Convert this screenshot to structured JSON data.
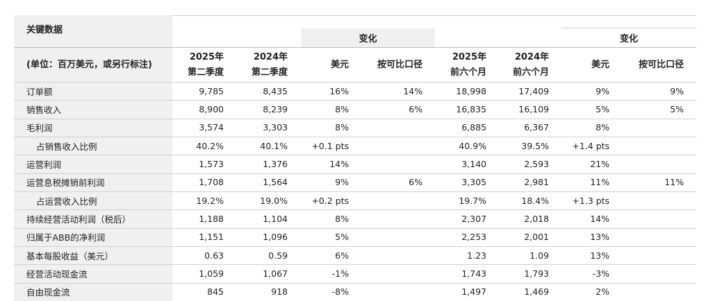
{
  "header": {
    "title": "关键数据",
    "groups": [
      "变化",
      "变化"
    ]
  },
  "table": {
    "columns": [
      [
        "(单位：百万美元，或另行标注)"
      ],
      [
        "2025年",
        "第二季度"
      ],
      [
        "2024年",
        "第二季度"
      ],
      [
        "美元"
      ],
      [
        "按可比口径"
      ],
      [
        "2025年",
        "前六个月"
      ],
      [
        "2024年",
        "前六个月"
      ],
      [
        "美元"
      ],
      [
        "按可比口径"
      ]
    ],
    "rows": [
      [
        "订单额",
        "9,785",
        "8,435",
        "16%",
        "14%",
        "18,998",
        "17,409",
        "9%",
        "9%"
      ],
      [
        "销售收入",
        "8,900",
        "8,239",
        "8%",
        "6%",
        "16,835",
        "16,109",
        "5%",
        "5%"
      ],
      [
        "毛利润",
        "3,574",
        "3,303",
        "8%",
        null,
        "6,885",
        "6,367",
        "8%",
        null
      ],
      [
        "占销售收入比例",
        "40.2%",
        "40.1%",
        "+0.1 pts",
        null,
        "40.9%",
        "39.5%",
        "+1.4 pts",
        null
      ],
      [
        "运营利润",
        "1,573",
        "1,376",
        "14%",
        null,
        "3,140",
        "2,593",
        "21%",
        null
      ],
      [
        "运营息税摊销前利润",
        "1,708",
        "1,564",
        "9%",
        "6%",
        "3,305",
        "2,981",
        "11%",
        "11%"
      ],
      [
        "占运营收入比例",
        "19.2%",
        "19.0%",
        "+0.2 pts",
        null,
        "19.7%",
        "18.4%",
        "+1.3 pts",
        null
      ],
      [
        "持续经营活动利润（税后）",
        "1,188",
        "1,104",
        "8%",
        null,
        "2,307",
        "2,018",
        "14%",
        null
      ],
      [
        "归属于ABB的净利润",
        "1,151",
        "1,096",
        "5%",
        null,
        "2,253",
        "2,001",
        "13%",
        null
      ],
      [
        "基本每股收益（美元）",
        "0.63",
        "0.59",
        "6%",
        null,
        "1.23",
        "1.09",
        "13%",
        null
      ],
      [
        "经营活动现金流",
        "1,059",
        "1,067",
        "-1%",
        null,
        "1,743",
        "1,793",
        "-3%",
        null
      ],
      [
        "自由现金流",
        "845",
        "918",
        "-8%",
        null,
        "1,497",
        "1,469",
        "2%",
        null
      ]
    ]
  }
}
